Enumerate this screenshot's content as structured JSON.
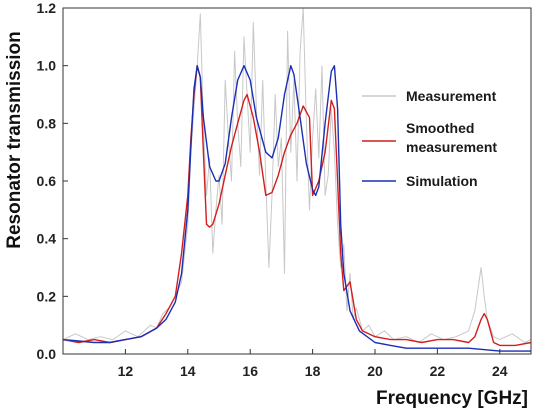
{
  "chart_data": {
    "type": "line",
    "title": "",
    "xlabel": "Frequency [GHz]",
    "ylabel": "Resonator transmission",
    "xlim": [
      10,
      25
    ],
    "ylim": [
      0,
      1.2
    ],
    "x_ticks": [
      12,
      14,
      16,
      18,
      20,
      22,
      24
    ],
    "y_ticks": [
      "0.0",
      "0.2",
      "0.4",
      "0.6",
      "0.8",
      "1.0",
      "1.2"
    ],
    "grid": false,
    "legend_position": "right",
    "series": [
      {
        "name": "Measurement",
        "color": "#c8c8c8",
        "x": [
          10.0,
          10.4,
          10.8,
          11.2,
          11.6,
          12.0,
          12.4,
          12.8,
          13.0,
          13.2,
          13.4,
          13.6,
          13.8,
          14.0,
          14.1,
          14.2,
          14.3,
          14.4,
          14.5,
          14.6,
          14.7,
          14.8,
          14.9,
          15.0,
          15.1,
          15.2,
          15.3,
          15.4,
          15.5,
          15.6,
          15.7,
          15.8,
          15.9,
          16.0,
          16.1,
          16.2,
          16.3,
          16.4,
          16.5,
          16.6,
          16.7,
          16.8,
          16.9,
          17.0,
          17.1,
          17.2,
          17.3,
          17.4,
          17.5,
          17.6,
          17.7,
          17.8,
          17.9,
          18.0,
          18.1,
          18.2,
          18.3,
          18.4,
          18.5,
          18.6,
          18.7,
          18.8,
          18.9,
          19.0,
          19.1,
          19.2,
          19.3,
          19.4,
          19.6,
          19.8,
          20.0,
          20.3,
          20.6,
          21.0,
          21.4,
          21.8,
          22.2,
          22.6,
          23.0,
          23.2,
          23.4,
          23.5,
          23.6,
          23.8,
          24.0,
          24.4,
          24.8,
          25.0
        ],
        "y": [
          0.05,
          0.07,
          0.05,
          0.06,
          0.05,
          0.08,
          0.06,
          0.1,
          0.09,
          0.14,
          0.16,
          0.2,
          0.25,
          0.45,
          0.7,
          0.85,
          1.0,
          1.18,
          0.8,
          0.55,
          0.68,
          0.35,
          0.5,
          0.62,
          0.45,
          0.95,
          0.75,
          0.6,
          1.05,
          0.8,
          0.65,
          1.1,
          0.9,
          0.7,
          1.15,
          0.85,
          0.62,
          0.95,
          0.6,
          0.3,
          0.55,
          0.9,
          0.65,
          0.75,
          0.28,
          1.12,
          0.7,
          0.95,
          0.6,
          1.05,
          1.2,
          0.8,
          0.5,
          0.75,
          0.92,
          0.68,
          1.0,
          0.55,
          0.62,
          0.85,
          0.7,
          0.45,
          0.3,
          0.38,
          0.15,
          0.28,
          0.12,
          0.16,
          0.08,
          0.1,
          0.06,
          0.08,
          0.05,
          0.06,
          0.04,
          0.07,
          0.05,
          0.06,
          0.08,
          0.15,
          0.3,
          0.2,
          0.12,
          0.06,
          0.05,
          0.07,
          0.04,
          0.05
        ]
      },
      {
        "name": "Smoothed measurement",
        "color": "#d21e1e",
        "x": [
          10.0,
          10.5,
          11.0,
          11.5,
          12.0,
          12.5,
          13.0,
          13.3,
          13.6,
          13.8,
          14.0,
          14.1,
          14.2,
          14.3,
          14.4,
          14.5,
          14.6,
          14.7,
          14.8,
          15.0,
          15.2,
          15.4,
          15.6,
          15.8,
          15.9,
          16.1,
          16.3,
          16.5,
          16.7,
          16.9,
          17.1,
          17.3,
          17.5,
          17.7,
          17.9,
          18.0,
          18.2,
          18.4,
          18.6,
          18.7,
          18.8,
          18.9,
          19.0,
          19.2,
          19.4,
          19.6,
          20.0,
          20.5,
          21.0,
          21.5,
          22.0,
          22.5,
          23.0,
          23.2,
          23.4,
          23.5,
          23.6,
          23.8,
          24.0,
          24.5,
          25.0
        ],
        "y": [
          0.05,
          0.04,
          0.05,
          0.04,
          0.05,
          0.06,
          0.09,
          0.14,
          0.2,
          0.35,
          0.55,
          0.75,
          0.9,
          1.0,
          0.96,
          0.7,
          0.45,
          0.44,
          0.45,
          0.52,
          0.62,
          0.72,
          0.8,
          0.88,
          0.9,
          0.82,
          0.7,
          0.55,
          0.56,
          0.62,
          0.7,
          0.76,
          0.8,
          0.86,
          0.82,
          0.55,
          0.6,
          0.7,
          0.88,
          0.85,
          0.6,
          0.35,
          0.22,
          0.25,
          0.12,
          0.08,
          0.06,
          0.05,
          0.05,
          0.04,
          0.05,
          0.05,
          0.04,
          0.06,
          0.12,
          0.14,
          0.12,
          0.04,
          0.03,
          0.03,
          0.04
        ]
      },
      {
        "name": "Simulation",
        "color": "#1a2fb4",
        "x": [
          10.0,
          10.5,
          11.0,
          11.5,
          12.0,
          12.5,
          13.0,
          13.3,
          13.6,
          13.8,
          14.0,
          14.1,
          14.2,
          14.3,
          14.4,
          14.5,
          14.7,
          14.9,
          15.0,
          15.2,
          15.4,
          15.6,
          15.8,
          16.0,
          16.2,
          16.5,
          16.7,
          16.9,
          17.1,
          17.3,
          17.4,
          17.6,
          17.8,
          18.0,
          18.1,
          18.2,
          18.4,
          18.6,
          18.7,
          18.8,
          18.9,
          19.0,
          19.2,
          19.5,
          20.0,
          20.5,
          21.0,
          22.0,
          23.0,
          24.0,
          25.0
        ],
        "y": [
          0.05,
          0.045,
          0.04,
          0.04,
          0.05,
          0.06,
          0.09,
          0.12,
          0.18,
          0.28,
          0.5,
          0.72,
          0.92,
          1.0,
          0.96,
          0.82,
          0.65,
          0.6,
          0.6,
          0.66,
          0.82,
          0.95,
          1.0,
          0.95,
          0.82,
          0.7,
          0.68,
          0.75,
          0.9,
          1.0,
          0.97,
          0.82,
          0.66,
          0.57,
          0.55,
          0.58,
          0.8,
          0.98,
          1.0,
          0.85,
          0.45,
          0.28,
          0.15,
          0.08,
          0.04,
          0.03,
          0.02,
          0.02,
          0.02,
          0.01,
          0.01
        ]
      }
    ]
  }
}
